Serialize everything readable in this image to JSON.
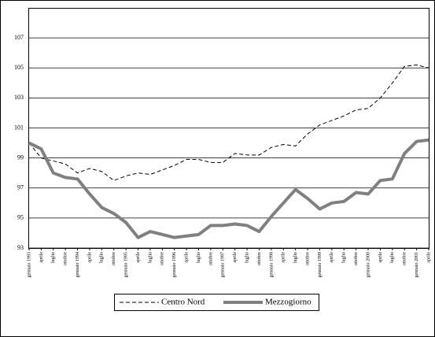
{
  "chart_data": {
    "type": "line",
    "categories": [
      "gennaio 1993",
      "aprile",
      "luglio",
      "ottobre",
      "gennaio 1994",
      "aprile",
      "luglio",
      "ottobre",
      "gennaio 1995",
      "aprile",
      "luglio",
      "ottobre",
      "gennaio 1996",
      "aprile",
      "luglio",
      "ottobre",
      "gennaio 1997",
      "aprile",
      "luglio",
      "ottobre",
      "gennaio 1998",
      "aprile",
      "luglio",
      "ottobre",
      "gennaio 1999",
      "aprile",
      "luglio",
      "ottobre",
      "gennaio 2000",
      "aprile",
      "luglio",
      "ottobre",
      "gennaio 2001",
      "aprile"
    ],
    "series": [
      {
        "name": "Centro Nord",
        "color": "#000000",
        "values": [
          100,
          99.0,
          98.8,
          98.6,
          98.0,
          98.3,
          98.1,
          97.5,
          97.8,
          98.0,
          97.9,
          98.2,
          98.5,
          98.9,
          98.9,
          98.7,
          98.7,
          99.3,
          99.2,
          99.2,
          99.7,
          99.9,
          99.8,
          100.6,
          101.2,
          101.5,
          101.8,
          102.2,
          102.3,
          103.0,
          104.0,
          105.1,
          105.2,
          105.0
        ]
      },
      {
        "name": "Mezzogiorno",
        "color": "#808080",
        "values": [
          100.0,
          99.6,
          98.0,
          97.7,
          97.6,
          96.6,
          95.7,
          95.3,
          94.7,
          93.7,
          94.1,
          93.9,
          93.7,
          93.8,
          93.9,
          94.5,
          94.5,
          94.6,
          94.5,
          94.1,
          95.1,
          96.0,
          96.9,
          96.3,
          95.6,
          96.0,
          96.1,
          96.7,
          96.6,
          97.5,
          97.6,
          99.3,
          100.1,
          100.2
        ]
      }
    ],
    "ylim": [
      93,
      109
    ],
    "yticks": [
      93,
      95,
      97,
      99,
      101,
      103,
      105,
      107
    ],
    "grid": true,
    "legend": "bottom"
  }
}
